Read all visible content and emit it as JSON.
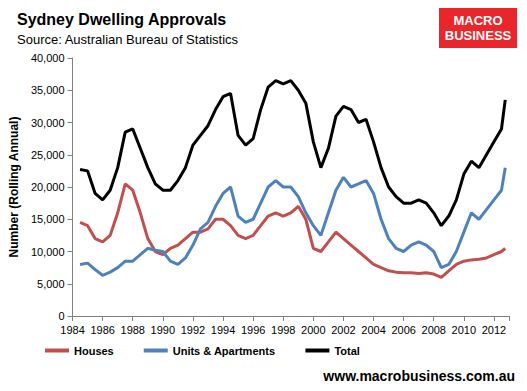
{
  "chart_data": {
    "type": "line",
    "title": "Sydney Dwelling Approvals",
    "subtitle": "Source: Australian Bureau of Statistics",
    "ylabel": "Number (Rolling Annual)",
    "annotations": [
      "MACRO BUSINESS",
      "www.macrobusiness.com.au"
    ],
    "x": [
      1984.5,
      1985,
      1985.5,
      1986,
      1986.5,
      1987,
      1987.5,
      1988,
      1988.5,
      1989,
      1989.5,
      1990,
      1990.5,
      1991,
      1991.5,
      1992,
      1992.5,
      1993,
      1993.5,
      1994,
      1994.5,
      1995,
      1995.5,
      1996,
      1996.5,
      1997,
      1997.5,
      1998,
      1998.5,
      1999,
      1999.5,
      2000,
      2000.5,
      2001,
      2001.5,
      2002,
      2002.5,
      2003,
      2003.5,
      2004,
      2004.5,
      2005,
      2005.5,
      2006,
      2006.5,
      2007,
      2007.5,
      2008,
      2008.5,
      2009,
      2009.5,
      2010,
      2010.5,
      2011,
      2011.5,
      2012,
      2012.5,
      2012.75
    ],
    "series": [
      {
        "name": "Houses",
        "color": "#c0504d",
        "values": [
          14500,
          14000,
          12000,
          11500,
          12500,
          16000,
          20500,
          19500,
          16000,
          12000,
          10000,
          9500,
          10500,
          11000,
          12000,
          13000,
          13000,
          13500,
          15000,
          15000,
          14000,
          12500,
          12000,
          12500,
          14000,
          15500,
          16000,
          15500,
          16000,
          17000,
          15000,
          10500,
          10000,
          11500,
          13000,
          12000,
          11000,
          10000,
          9000,
          8000,
          7500,
          7000,
          6800,
          6700,
          6700,
          6600,
          6700,
          6500,
          6000,
          7000,
          8000,
          8500,
          8700,
          8800,
          9000,
          9500,
          10000,
          10500
        ]
      },
      {
        "name": "Units & Apartments",
        "color": "#4f81bd",
        "values": [
          8000,
          8200,
          7200,
          6300,
          6800,
          7500,
          8500,
          8500,
          9500,
          10500,
          10200,
          10000,
          8500,
          8000,
          9000,
          11000,
          13500,
          14500,
          17000,
          19000,
          20000,
          15500,
          14500,
          15000,
          17500,
          20000,
          21000,
          20000,
          20000,
          18500,
          16000,
          14000,
          12500,
          16000,
          19500,
          21500,
          20000,
          20500,
          21000,
          19000,
          15000,
          12000,
          10500,
          10000,
          11000,
          11500,
          11000,
          10000,
          7500,
          8000,
          10000,
          13000,
          16000,
          15000,
          16500,
          18000,
          19500,
          23000
        ]
      },
      {
        "name": "Total",
        "color": "#000000",
        "values": [
          22700,
          22500,
          19000,
          18000,
          19500,
          23000,
          28500,
          29000,
          26000,
          23000,
          20500,
          19500,
          19500,
          21000,
          23000,
          26500,
          28000,
          29500,
          32000,
          34000,
          34500,
          28000,
          26500,
          27500,
          32000,
          35500,
          36500,
          36000,
          36500,
          35000,
          33000,
          27000,
          23000,
          26000,
          31000,
          32500,
          32000,
          30000,
          30500,
          27000,
          23000,
          20000,
          18500,
          17500,
          17500,
          18000,
          17500,
          16000,
          14000,
          15500,
          18000,
          22000,
          24000,
          23000,
          25000,
          27000,
          29000,
          33500
        ]
      }
    ],
    "xlim": [
      1984,
      2013
    ],
    "xticks": [
      1984,
      1986,
      1988,
      1990,
      1992,
      1994,
      1996,
      1998,
      2000,
      2002,
      2004,
      2006,
      2008,
      2010,
      2012
    ],
    "ylim": [
      0,
      40000
    ],
    "yticks": [
      0,
      {
        "value": 5000,
        "label": "5,000"
      },
      {
        "value": 10000,
        "label": "10,000"
      },
      {
        "value": 15000,
        "label": "15,000"
      },
      {
        "value": 20000,
        "label": "20,000"
      },
      {
        "value": 25000,
        "label": "25,000"
      },
      {
        "value": 30000,
        "label": "30,000"
      },
      {
        "value": 35000,
        "label": "35,000"
      },
      {
        "value": 40000,
        "label": "40,000"
      }
    ],
    "grid": false,
    "legend": "bottom"
  }
}
